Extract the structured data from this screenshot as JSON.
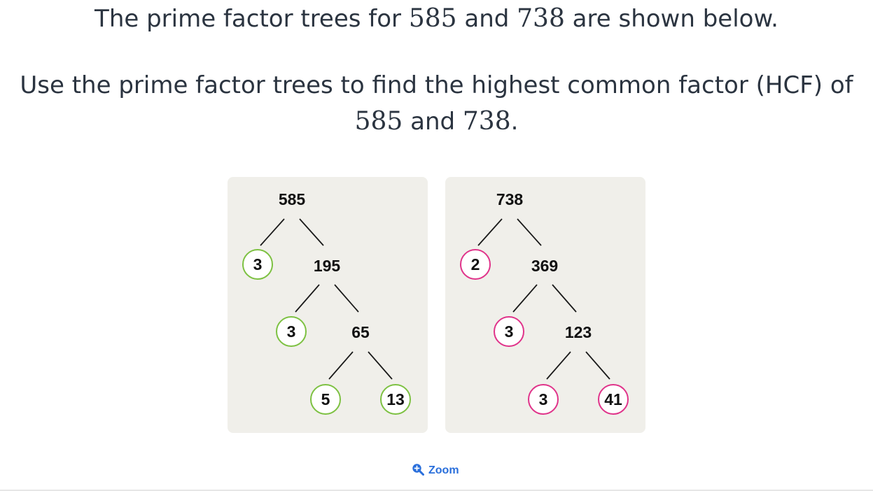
{
  "question": {
    "line1_pre": "The prime factor trees for ",
    "num_a": "585",
    "line1_mid": " and ",
    "num_b": "738",
    "line1_post": " are shown below.",
    "line2": "Use the prime factor trees to find the highest common factor (HCF) of",
    "line3_num_a": "585",
    "line3_mid": " and ",
    "line3_num_b": "738",
    "line3_post": "."
  },
  "trees": {
    "left": {
      "root": "585",
      "level1_prime": "3",
      "level1_composite": "195",
      "level2_prime": "3",
      "level2_composite": "65",
      "level3_prime_a": "5",
      "level3_prime_b": "13",
      "circle_color": "#7dc142"
    },
    "right": {
      "root": "738",
      "level1_prime": "2",
      "level1_composite": "369",
      "level2_prime": "3",
      "level2_composite": "123",
      "level3_prime_a": "3",
      "level3_prime_b": "41",
      "circle_color": "#e0338a"
    }
  },
  "zoom": {
    "label": "Zoom",
    "icon": "zoom-in-icon",
    "color": "#2a6fdb"
  }
}
